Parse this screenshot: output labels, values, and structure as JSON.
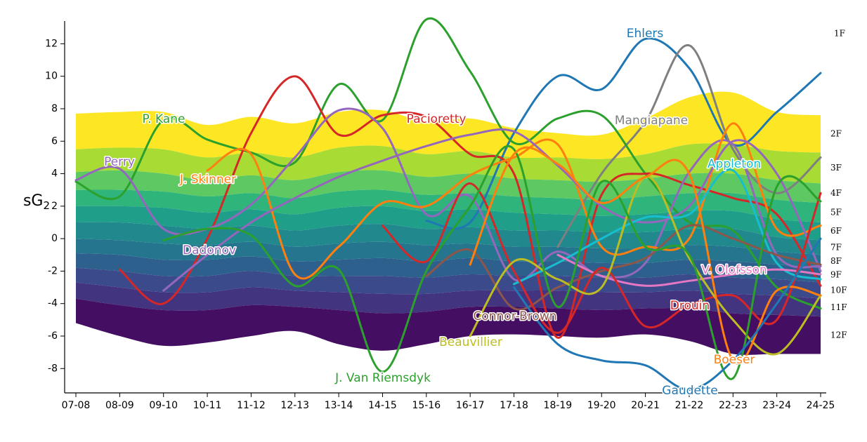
{
  "chart_data": {
    "type": "line",
    "y_label": "sG",
    "y_label_subscript": "2",
    "categories": [
      "07-08",
      "08-09",
      "09-10",
      "10-11",
      "11-12",
      "12-13",
      "13-14",
      "14-15",
      "15-16",
      "16-17",
      "17-18",
      "18-19",
      "19-20",
      "20-21",
      "21-22",
      "22-23",
      "23-24",
      "24-25"
    ],
    "ylim": [
      -9.5,
      13.4
    ],
    "yticks": [
      -8,
      -6,
      -4,
      -2,
      0,
      2,
      4,
      6,
      8,
      10,
      12
    ],
    "top_band_label": "1F",
    "bands": [
      {
        "name": "2F",
        "color": "#fde725",
        "values": [
          7.7,
          7.8,
          7.8,
          7.0,
          7.5,
          7.1,
          7.8,
          7.9,
          7.2,
          7.4,
          6.8,
          6.5,
          6.4,
          7.4,
          8.7,
          9.0,
          7.8,
          7.6
        ]
      },
      {
        "name": "3F",
        "color": "#a8db34",
        "values": [
          5.5,
          5.6,
          5.5,
          5.0,
          5.3,
          5.0,
          5.6,
          5.7,
          5.2,
          5.4,
          5.0,
          5.0,
          4.9,
          5.2,
          5.8,
          5.8,
          5.4,
          5.3
        ]
      },
      {
        "name": "4F",
        "color": "#5ec962",
        "values": [
          4.1,
          4.2,
          4.0,
          3.6,
          3.9,
          3.6,
          4.1,
          4.2,
          3.8,
          4.0,
          3.7,
          3.6,
          3.5,
          3.7,
          4.0,
          4.0,
          3.6,
          3.4
        ]
      },
      {
        "name": "5F",
        "color": "#2fb47c",
        "values": [
          3.0,
          3.0,
          2.9,
          2.6,
          2.8,
          2.5,
          2.9,
          3.0,
          2.7,
          2.8,
          2.6,
          2.5,
          2.4,
          2.6,
          2.8,
          2.8,
          2.4,
          2.2
        ]
      },
      {
        "name": "6F",
        "color": "#1f9e89",
        "values": [
          2.0,
          2.0,
          1.9,
          1.6,
          1.8,
          1.5,
          1.9,
          2.0,
          1.7,
          1.8,
          1.6,
          1.5,
          1.4,
          1.5,
          1.7,
          1.7,
          1.2,
          1.0
        ]
      },
      {
        "name": "7F",
        "color": "#21898d",
        "values": [
          1.0,
          1.0,
          0.8,
          0.6,
          0.8,
          0.5,
          0.8,
          0.9,
          0.6,
          0.7,
          0.5,
          0.5,
          0.4,
          0.4,
          0.6,
          0.6,
          0.1,
          -0.1
        ]
      },
      {
        "name": "8F",
        "color": "#26758e",
        "values": [
          0.0,
          -0.1,
          -0.3,
          -0.4,
          -0.2,
          -0.5,
          -0.3,
          -0.2,
          -0.4,
          -0.3,
          -0.5,
          -0.5,
          -0.6,
          -0.6,
          -0.4,
          -0.5,
          -0.8,
          -1.0
        ]
      },
      {
        "name": "9F",
        "color": "#2e608d",
        "values": [
          -0.9,
          -1.0,
          -1.3,
          -1.3,
          -1.1,
          -1.4,
          -1.3,
          -1.2,
          -1.4,
          -1.2,
          -1.4,
          -1.4,
          -1.5,
          -1.5,
          -1.3,
          -1.4,
          -1.6,
          -1.8
        ]
      },
      {
        "name": "10F",
        "color": "#3a4a8b",
        "values": [
          -1.8,
          -2.0,
          -2.3,
          -2.3,
          -2.0,
          -2.3,
          -2.3,
          -2.3,
          -2.4,
          -2.2,
          -2.3,
          -2.3,
          -2.4,
          -2.4,
          -2.2,
          -2.4,
          -2.5,
          -2.7
        ]
      },
      {
        "name": "11F",
        "color": "#433480",
        "values": [
          -2.7,
          -3.0,
          -3.3,
          -3.3,
          -3.0,
          -3.2,
          -3.3,
          -3.4,
          -3.4,
          -3.2,
          -3.2,
          -3.2,
          -3.3,
          -3.3,
          -3.2,
          -3.4,
          -3.5,
          -3.7
        ]
      },
      {
        "name": "12F",
        "color": "#440f62",
        "values": [
          -3.7,
          -4.1,
          -4.4,
          -4.4,
          -4.1,
          -4.2,
          -4.4,
          -4.6,
          -4.5,
          -4.2,
          -4.2,
          -4.3,
          -4.4,
          -4.3,
          -4.3,
          -4.6,
          -4.7,
          -4.8
        ]
      }
    ],
    "bands_floor": [
      -5.2,
      -6.0,
      -6.6,
      -6.4,
      -6.0,
      -5.7,
      -6.5,
      -6.9,
      -6.5,
      -6.0,
      -5.9,
      -6.0,
      -6.1,
      -5.9,
      -6.3,
      -7.1,
      -7.1,
      -7.1
    ],
    "series": [
      {
        "name": "Ehlers",
        "color": "#1f77b4",
        "values": [
          null,
          null,
          null,
          null,
          null,
          null,
          null,
          null,
          1.1,
          1.0,
          6.5,
          10.0,
          9.2,
          12.3,
          10.5,
          5.8,
          7.8,
          10.2
        ]
      },
      {
        "name": "Mangiapane",
        "color": "#7f7f7f",
        "values": [
          null,
          null,
          null,
          null,
          null,
          null,
          null,
          null,
          null,
          null,
          null,
          -0.5,
          4.0,
          7.2,
          11.9,
          5.5,
          2.8,
          5.0
        ]
      },
      {
        "name": "P. Kane",
        "color": "#2ca02c",
        "values": [
          3.5,
          2.6,
          7.3,
          6.1,
          5.3,
          4.7,
          9.5,
          7.3,
          13.5,
          10.3,
          5.9,
          7.4,
          7.6,
          4.0,
          1.0,
          0.5,
          -3.0,
          -4.3
        ]
      },
      {
        "name": "Pacioretty",
        "color": "#d62728",
        "values": [
          null,
          -1.9,
          -4.0,
          0.0,
          6.5,
          10.0,
          6.4,
          7.6,
          7.5,
          5.2,
          4.0,
          -6.1,
          2.7,
          4.0,
          3.3,
          2.5,
          1.5,
          -2.9
        ]
      },
      {
        "name": "Perry",
        "color": "#9467bd",
        "values": [
          3.6,
          4.3,
          0.6,
          0.6,
          2.1,
          5.0,
          7.9,
          6.8,
          1.5,
          2.6,
          -2.5,
          -0.8,
          -2.3,
          -1.5,
          4.1,
          5.8,
          -1.0,
          -1.7
        ]
      },
      {
        "name": "J. Skinner",
        "color": "#ff7f0e",
        "values": [
          null,
          null,
          null,
          4.2,
          5.2,
          -2.2,
          -0.5,
          2.2,
          2.0,
          3.9,
          5.0,
          5.8,
          -0.5,
          -0.5,
          0.0,
          7.1,
          0.6,
          0.8
        ]
      },
      {
        "name": "Dadonov",
        "color": "#9467bd",
        "values": [
          null,
          null,
          -3.2,
          -1.0,
          1.0,
          2.5,
          3.8,
          4.8,
          5.7,
          6.4,
          6.6,
          4.5,
          2.0,
          1.0,
          2.0,
          6.0,
          4.0,
          -2.0
        ]
      },
      {
        "name": "Appleton",
        "color": "#17becf",
        "values": [
          null,
          null,
          null,
          null,
          null,
          null,
          null,
          null,
          null,
          null,
          -2.8,
          -1.5,
          0.0,
          1.3,
          1.5,
          4.2,
          -1.5,
          -2.5
        ]
      },
      {
        "name": "V. Olofsson",
        "color": "#e377c2",
        "values": [
          null,
          null,
          null,
          null,
          null,
          null,
          null,
          null,
          null,
          null,
          null,
          -1.0,
          -2.3,
          -2.9,
          -2.6,
          -2.2,
          -1.9,
          -2.2
        ]
      },
      {
        "name": "Connor-Brown",
        "color": "#8c564b",
        "values": [
          null,
          null,
          null,
          null,
          null,
          null,
          null,
          null,
          -2.3,
          -0.7,
          -4.3,
          -3.0,
          -2.0,
          -1.2,
          0.8,
          0.0,
          -1.0,
          -1.6
        ]
      },
      {
        "name": "Drouin",
        "color": "#d62728",
        "values": [
          null,
          null,
          null,
          null,
          null,
          null,
          null,
          0.8,
          -1.4,
          3.4,
          -2.0,
          -5.8,
          -1.8,
          -5.4,
          -4.1,
          -3.5,
          -5.0,
          2.8
        ]
      },
      {
        "name": "Beauvillier",
        "color": "#bcbd22",
        "values": [
          null,
          null,
          null,
          null,
          null,
          null,
          null,
          null,
          null,
          -6.0,
          -1.4,
          -2.5,
          -3.0,
          3.8,
          -1.2,
          -5.0,
          -7.1,
          -3.5
        ]
      },
      {
        "name": "J. Van Riemsdyk",
        "color": "#2ca02c",
        "values": [
          null,
          null,
          -0.1,
          0.6,
          0.2,
          -2.9,
          -1.9,
          -8.2,
          -2.0,
          2.0,
          5.5,
          -4.2,
          3.5,
          -0.5,
          -1.0,
          -8.6,
          3.2,
          2.3
        ]
      },
      {
        "name": "Boeser",
        "color": "#ff7f0e",
        "values": [
          null,
          null,
          null,
          null,
          null,
          null,
          null,
          null,
          null,
          -1.6,
          5.2,
          4.6,
          2.2,
          3.8,
          4.0,
          -7.5,
          -3.2,
          -3.5
        ]
      },
      {
        "name": "Gaudette",
        "color": "#1f77b4",
        "values": [
          null,
          null,
          null,
          null,
          null,
          null,
          null,
          null,
          null,
          null,
          -3.0,
          -6.5,
          -7.5,
          -7.8,
          -9.3,
          -7.5,
          -4.0,
          0.0
        ]
      }
    ]
  }
}
